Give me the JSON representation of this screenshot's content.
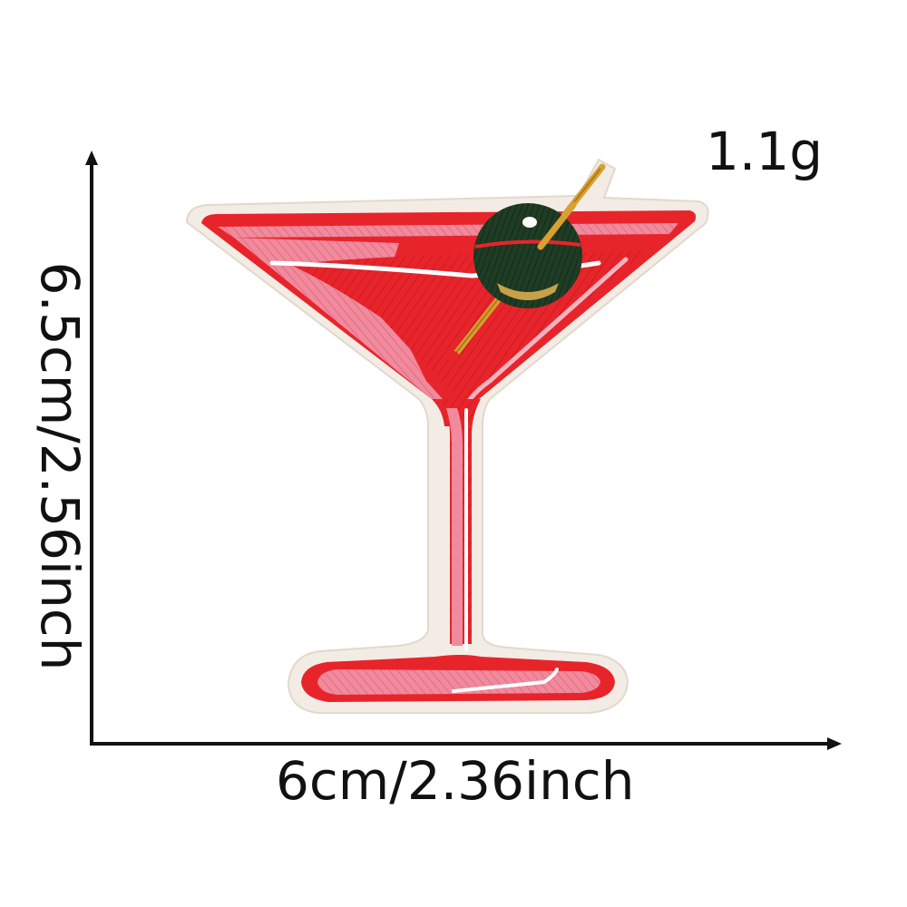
{
  "product": {
    "name_icon": "martini-glass-patch-icon",
    "weight": "1.1g",
    "width_dimension": "6cm/2.36inch",
    "height_dimension": "6.5cm/2.56inch"
  },
  "colors": {
    "background": "#ffffff",
    "axis": "#111111",
    "patch_border": "#f3ece4",
    "glass_red": "#e8242b",
    "glass_pink": "#f08a9c",
    "glass_light_pink": "#f5b3bf",
    "olive_green": "#1f3d24",
    "olive_pimento": "#c9a04a",
    "toothpick": "#d8a030",
    "highlight": "#ffffff"
  }
}
